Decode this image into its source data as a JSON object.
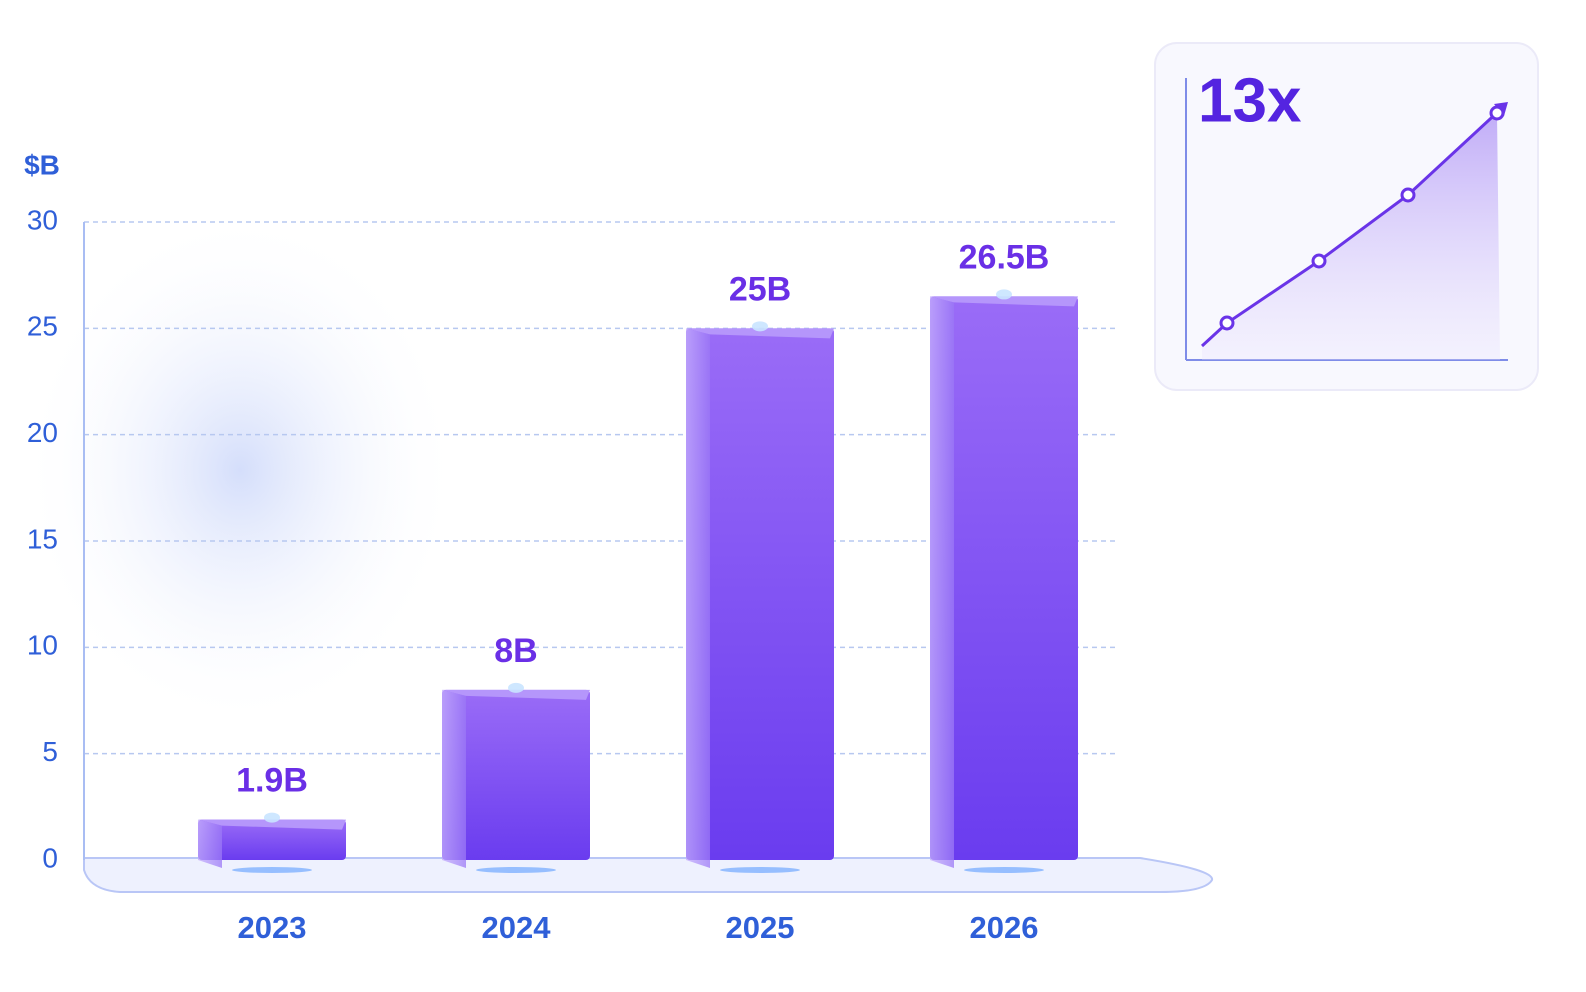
{
  "chart_data": {
    "type": "bar",
    "y_label": "$B",
    "annotation": "13x",
    "categories": [
      "2023",
      "2024",
      "2025",
      "2026"
    ],
    "values": [
      1.9,
      8,
      25,
      26.5
    ],
    "value_labels": [
      "1.9B",
      "8B",
      "25B",
      "26.5B"
    ],
    "color": "#7c4cf2",
    "ylim": [
      0,
      30
    ],
    "yticks": [
      0,
      5,
      10,
      15,
      20,
      25,
      30
    ],
    "grid": true
  }
}
